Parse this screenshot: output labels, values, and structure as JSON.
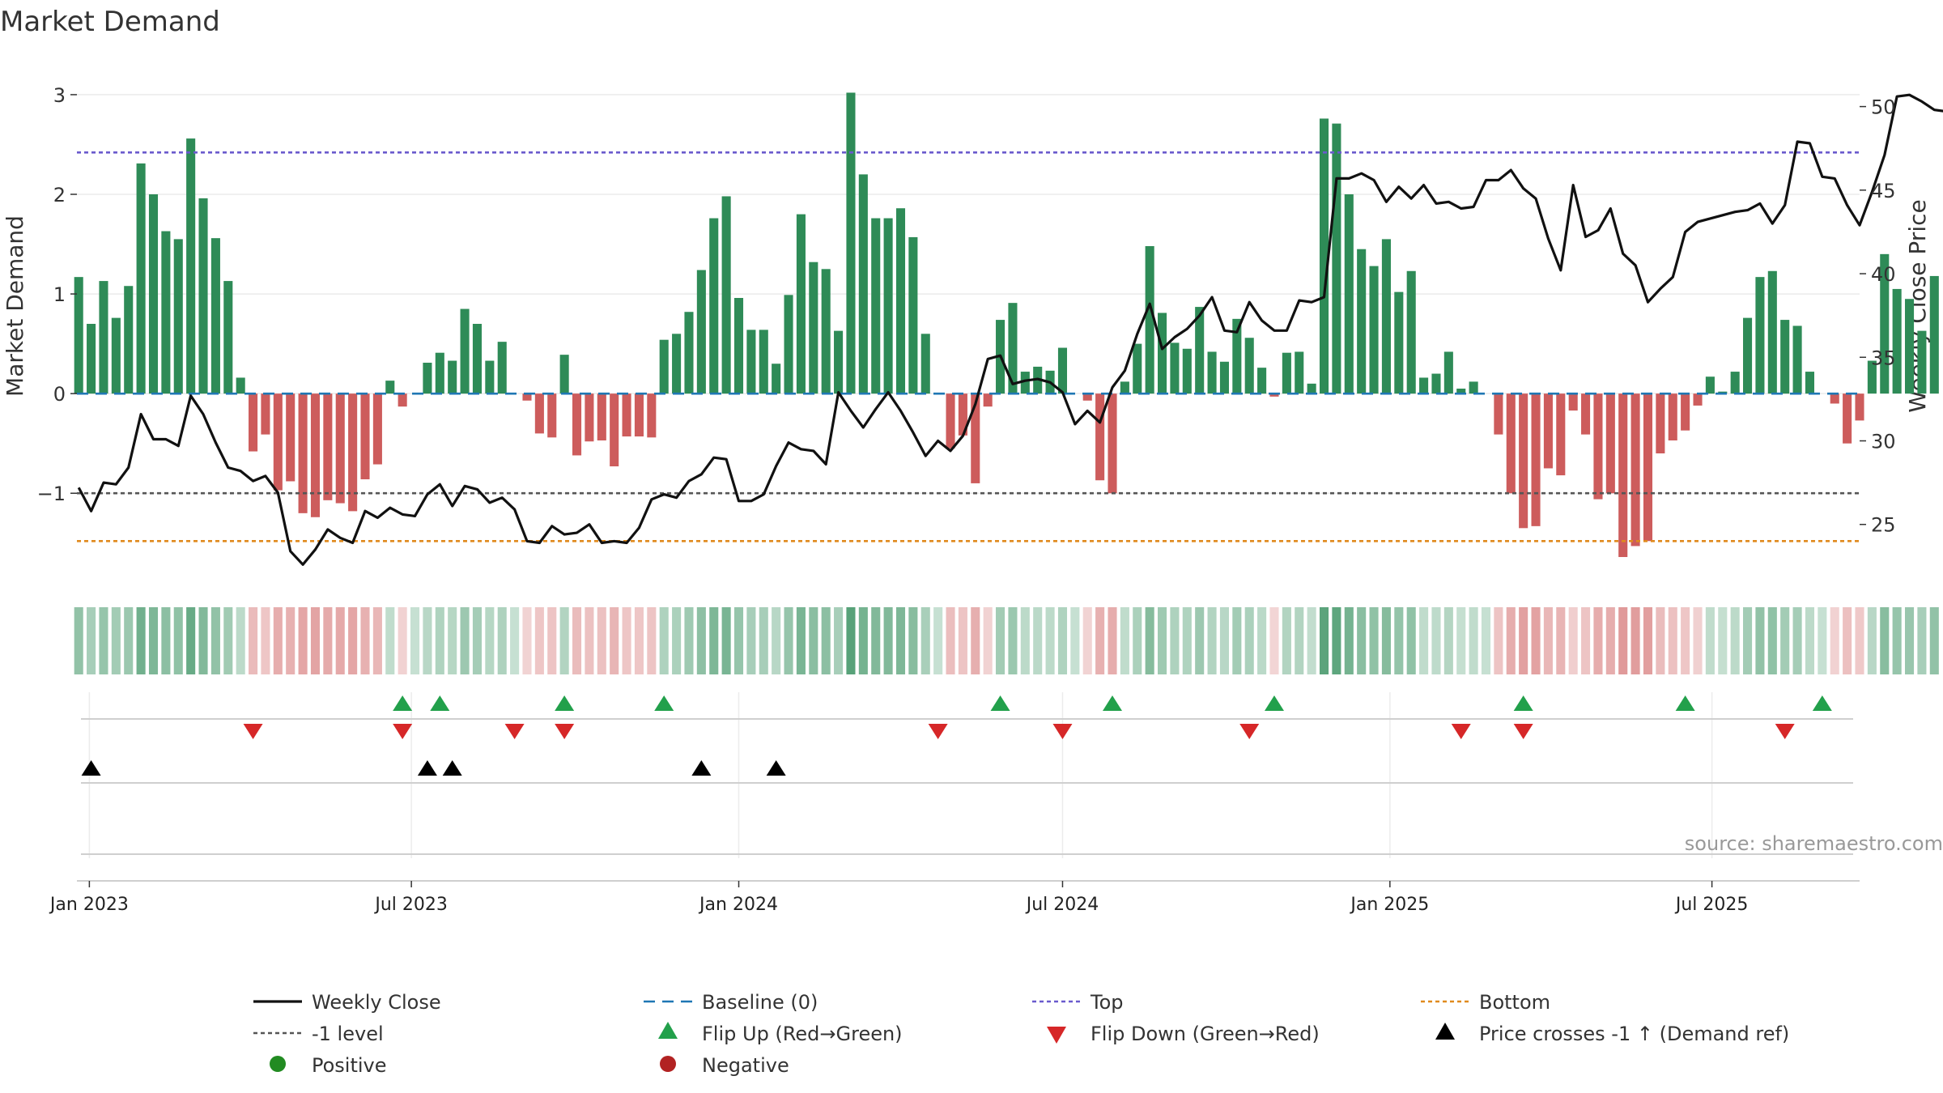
{
  "chart_data": {
    "type": "bar",
    "title": "Market Demand",
    "ylabel": "Market Demand",
    "y2label": "Weekly Close Price",
    "ylim": [
      -1.9,
      3.3
    ],
    "y2lim": [
      21.5,
      52.5
    ],
    "yticks": [
      3,
      2,
      1,
      0,
      -1
    ],
    "ytick_labels": [
      "3",
      "2",
      "1",
      "0",
      "−1"
    ],
    "y2ticks": [
      50,
      45,
      40,
      35,
      30,
      25
    ],
    "xlim": [
      "2022-12-25",
      "2025-09-22"
    ],
    "start_date": "2022-12-26",
    "xticks": [
      {
        "date": "2023-01-01",
        "label": "Jan 2023"
      },
      {
        "date": "2023-07-01",
        "label": "Jul 2023"
      },
      {
        "date": "2024-01-01",
        "label": "Jan 2024"
      },
      {
        "date": "2024-07-01",
        "label": "Jul 2024"
      },
      {
        "date": "2025-01-01",
        "label": "Jan 2025"
      },
      {
        "date": "2025-07-01",
        "label": "Jul 2025"
      }
    ],
    "demand": [
      1.17,
      0.7,
      1.13,
      0.76,
      1.08,
      2.31,
      2.0,
      1.63,
      1.55,
      2.56,
      1.96,
      1.56,
      1.13,
      0.16,
      -0.58,
      -0.41,
      -0.97,
      -0.88,
      -1.2,
      -1.24,
      -1.07,
      -1.1,
      -1.18,
      -0.86,
      -0.71,
      0.13,
      -0.13,
      0.0,
      0.31,
      0.41,
      0.33,
      0.85,
      0.7,
      0.33,
      0.52,
      0.0,
      -0.07,
      -0.4,
      -0.44,
      0.39,
      -0.62,
      -0.48,
      -0.47,
      -0.73,
      -0.43,
      -0.43,
      -0.44,
      0.54,
      0.6,
      0.82,
      1.24,
      1.76,
      1.98,
      0.96,
      0.64,
      0.64,
      0.3,
      0.99,
      1.8,
      1.32,
      1.25,
      0.63,
      3.02,
      2.2,
      1.76,
      1.76,
      1.86,
      1.57,
      0.6,
      0.0,
      -0.55,
      -0.42,
      -0.9,
      -0.13,
      0.74,
      0.91,
      0.22,
      0.27,
      0.23,
      0.46,
      0.0,
      -0.07,
      -0.87,
      -1.0,
      0.12,
      0.5,
      1.48,
      0.81,
      0.51,
      0.45,
      0.87,
      0.42,
      0.32,
      0.75,
      0.56,
      0.26,
      -0.03,
      0.41,
      0.42,
      0.1,
      2.76,
      2.71,
      2.0,
      1.45,
      1.28,
      1.55,
      1.02,
      1.23,
      0.16,
      0.2,
      0.42,
      0.05,
      0.12,
      0.0,
      -0.41,
      -1.0,
      -1.35,
      -1.33,
      -0.75,
      -0.82,
      -0.17,
      -0.41,
      -1.06,
      -1.0,
      -1.64,
      -1.53,
      -1.48,
      -0.6,
      -0.47,
      -0.37,
      -0.12,
      0.17,
      0.02,
      0.22,
      0.76,
      1.17,
      1.23,
      0.74,
      0.68,
      0.22,
      0.0,
      -0.1,
      -0.5,
      -0.27,
      0.33,
      1.4,
      1.05,
      0.95,
      0.63,
      1.18
    ],
    "close": [
      27.2,
      25.8,
      27.5,
      27.4,
      28.4,
      31.6,
      30.1,
      30.1,
      29.7,
      32.7,
      31.6,
      29.9,
      28.4,
      28.2,
      27.6,
      27.9,
      26.9,
      23.4,
      22.6,
      23.5,
      24.7,
      24.2,
      23.9,
      25.8,
      25.4,
      26.0,
      25.6,
      25.5,
      26.8,
      27.4,
      26.1,
      27.3,
      27.1,
      26.3,
      26.6,
      25.9,
      24.0,
      23.9,
      24.9,
      24.4,
      24.5,
      25.0,
      23.9,
      24.0,
      23.9,
      24.8,
      26.5,
      26.8,
      26.6,
      27.6,
      28.0,
      29.0,
      28.9,
      26.4,
      26.4,
      26.8,
      28.5,
      29.9,
      29.5,
      29.4,
      28.6,
      32.9,
      31.8,
      30.8,
      31.9,
      32.9,
      31.8,
      30.5,
      29.1,
      30.0,
      29.4,
      30.3,
      32.2,
      34.9,
      35.1,
      33.4,
      33.6,
      33.7,
      33.5,
      32.9,
      31.0,
      31.8,
      31.1,
      33.2,
      34.2,
      36.4,
      38.2,
      35.5,
      36.2,
      36.7,
      37.5,
      38.6,
      36.6,
      36.5,
      38.3,
      37.2,
      36.6,
      36.6,
      38.4,
      38.3,
      38.6,
      45.7,
      45.7,
      46.0,
      45.6,
      44.3,
      45.2,
      44.5,
      45.3,
      44.2,
      44.3,
      43.9,
      44.0,
      45.6,
      45.6,
      46.2,
      45.1,
      44.5,
      42.1,
      40.2,
      45.3,
      42.2,
      42.6,
      43.9,
      41.2,
      40.5,
      38.3,
      39.1,
      39.8,
      42.5,
      43.1,
      43.3,
      43.5,
      43.7,
      43.8,
      44.2,
      43.0,
      44.1,
      47.9,
      47.8,
      45.8,
      45.7,
      44.1,
      42.9,
      44.9,
      47.1,
      50.6,
      50.7,
      50.3,
      49.8,
      49.7
    ],
    "heat_strip": [
      0.52,
      0.42,
      0.5,
      0.44,
      0.48,
      0.68,
      0.62,
      0.55,
      0.53,
      0.72,
      0.6,
      0.52,
      0.45,
      0.32,
      -0.42,
      -0.35,
      -0.5,
      -0.48,
      -0.55,
      -0.56,
      -0.52,
      -0.53,
      -0.55,
      -0.48,
      -0.44,
      0.3,
      -0.28,
      0.27,
      0.34,
      0.38,
      0.35,
      0.47,
      0.43,
      0.35,
      0.39,
      0.27,
      -0.27,
      -0.35,
      -0.36,
      0.37,
      -0.41,
      -0.38,
      -0.38,
      -0.45,
      -0.35,
      -0.35,
      -0.36,
      0.39,
      0.4,
      0.46,
      0.54,
      0.62,
      0.64,
      0.5,
      0.42,
      0.42,
      0.34,
      0.5,
      0.64,
      0.56,
      0.55,
      0.42,
      0.8,
      0.66,
      0.6,
      0.6,
      0.62,
      0.57,
      0.41,
      0.27,
      -0.4,
      -0.36,
      -0.49,
      -0.28,
      0.44,
      0.48,
      0.32,
      0.33,
      0.32,
      0.38,
      0.27,
      -0.27,
      -0.48,
      -0.5,
      0.3,
      0.4,
      0.58,
      0.46,
      0.39,
      0.38,
      0.47,
      0.37,
      0.34,
      0.44,
      0.4,
      0.33,
      -0.26,
      0.37,
      0.37,
      0.29,
      0.78,
      0.77,
      0.66,
      0.56,
      0.53,
      0.58,
      0.51,
      0.53,
      0.3,
      0.31,
      0.36,
      0.28,
      0.3,
      0.27,
      -0.36,
      -0.5,
      -0.58,
      -0.57,
      -0.44,
      -0.46,
      -0.3,
      -0.36,
      -0.51,
      -0.5,
      -0.62,
      -0.6,
      -0.59,
      -0.41,
      -0.38,
      -0.35,
      -0.29,
      0.3,
      0.28,
      0.32,
      0.44,
      0.52,
      0.53,
      0.44,
      0.43,
      0.32,
      0.27,
      -0.28,
      -0.39,
      -0.33,
      0.34,
      0.57,
      0.5,
      0.49,
      0.42,
      0.52
    ],
    "reference_lines": {
      "baseline": 0,
      "top": 2.42,
      "minus_one": -1,
      "bottom": -1.48
    },
    "flip_up_weeks": [
      26,
      29,
      39,
      47,
      74,
      83,
      96,
      116,
      129,
      140
    ],
    "flip_down_weeks": [
      14,
      26,
      35,
      39,
      69,
      79,
      94,
      111,
      116,
      137
    ],
    "price_cross_weeks": [
      1,
      28,
      30,
      50,
      56
    ],
    "legend": {
      "weekly_close": "Weekly Close",
      "baseline": "Baseline (0)",
      "top": "Top",
      "bottom": "Bottom",
      "minus_one": "-1 level",
      "flip_up": "Flip Up (Red→Green)",
      "flip_down": "Flip Down (Green→Red)",
      "price_cross": "Price crosses -1 ↑ (Demand ref)",
      "positive": "Positive",
      "negative": "Negative"
    },
    "source": "source: sharemaestro.com"
  },
  "colors": {
    "positive_bar": "#2e8b57",
    "negative_bar": "#cd5c5c",
    "close_line": "#111111",
    "baseline": "#1f77b4",
    "top": "#6a5acd",
    "minus_one": "#555555",
    "bottom": "#e08a1e",
    "flip_up": "#22a04b",
    "flip_down": "#d62728",
    "price_cross": "#000000",
    "positive_dot": "#228b22",
    "negative_dot": "#b22222"
  }
}
